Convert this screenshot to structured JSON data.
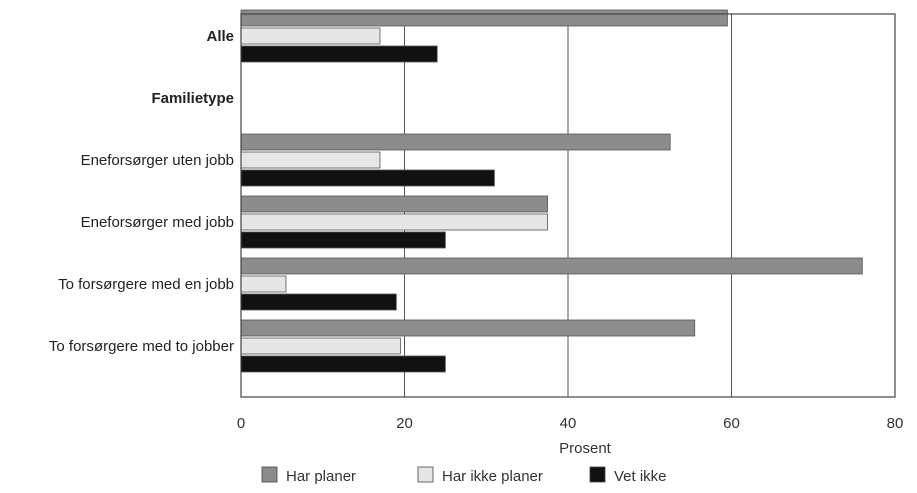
{
  "chart_data": {
    "type": "bar",
    "orientation": "horizontal",
    "xlabel": "Prosent",
    "xlim": [
      0,
      80
    ],
    "xticks": [
      0,
      20,
      40,
      60,
      80
    ],
    "grid": true,
    "legend_position": "bottom",
    "categories": [
      {
        "label": "Alle",
        "bold": true,
        "header": false
      },
      {
        "label": "Familietype",
        "bold": true,
        "header": true
      },
      {
        "label": "Eneforsørger uten jobb",
        "bold": false,
        "header": false
      },
      {
        "label": "Eneforsørger med jobb",
        "bold": false,
        "header": false
      },
      {
        "label": "To forsørgere med en jobb",
        "bold": false,
        "header": false
      },
      {
        "label": "To forsørgere med to jobber",
        "bold": false,
        "header": false
      }
    ],
    "series": [
      {
        "name": "Har planer",
        "color": "#8c8c8c",
        "values": [
          59.5,
          null,
          52.5,
          37.5,
          76,
          55.5
        ]
      },
      {
        "name": "Har ikke planer",
        "color": "#e6e6e6",
        "values": [
          17,
          null,
          17,
          37.5,
          5.5,
          19.5
        ]
      },
      {
        "name": "Vet ikke",
        "color": "#111111",
        "values": [
          24,
          null,
          31,
          25,
          19,
          25
        ]
      }
    ]
  }
}
